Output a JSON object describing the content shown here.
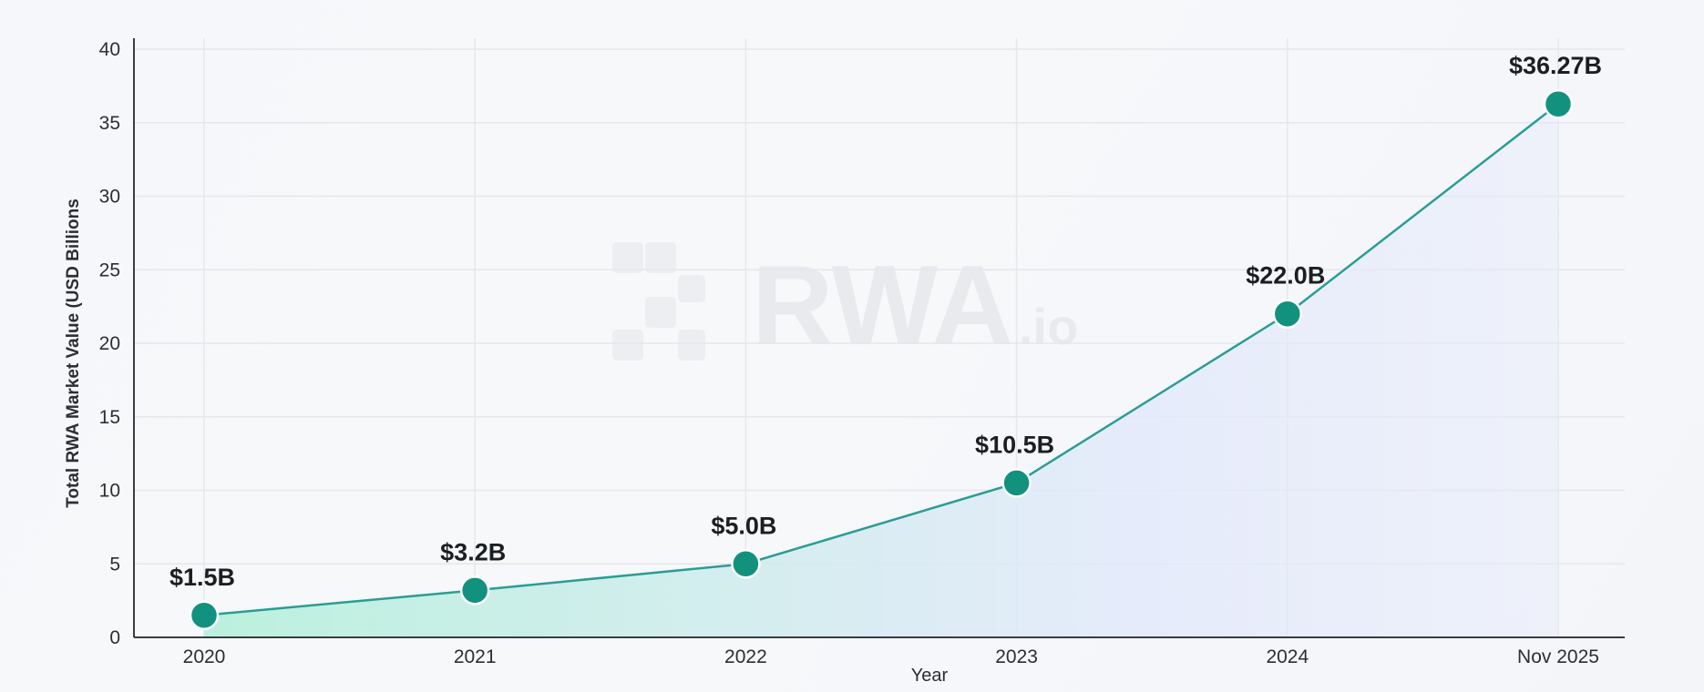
{
  "chart_data": {
    "type": "line",
    "title": "",
    "xlabel": "Year",
    "ylabel": "Total RWA Market Value (USD Billions",
    "categories": [
      "2020",
      "2021",
      "2022",
      "2023",
      "2024",
      "Nov 2025"
    ],
    "series": [
      {
        "values": [
          1.5,
          3.2,
          5.0,
          10.5,
          22.0,
          36.27
        ],
        "data_labels": [
          "$1.5B",
          "$3.2B",
          "$5.0B",
          "$10.5B",
          "$22.0B",
          "$36.27B"
        ]
      }
    ],
    "ylim": [
      0,
      40
    ],
    "yticks": [
      0,
      5,
      10,
      15,
      20,
      25,
      30,
      35,
      40
    ],
    "grid": true,
    "area_fill": true,
    "colors": {
      "line": "#2a9d94",
      "marker": "#12917f",
      "marker_edge": "#ffffff",
      "area_start": "#b8f0dc",
      "area_end": "#e3e9fb",
      "grid": "#e4e7ec",
      "axis": "#3a3d40"
    },
    "watermark": {
      "text": "RWA",
      "suffix": ".io"
    }
  }
}
